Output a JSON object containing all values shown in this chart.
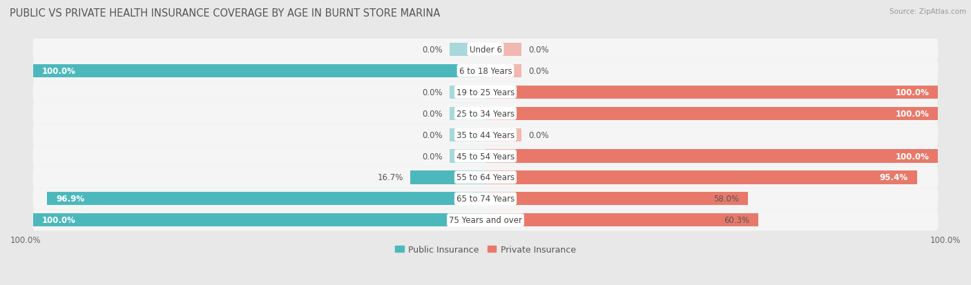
{
  "title": "PUBLIC VS PRIVATE HEALTH INSURANCE COVERAGE BY AGE IN BURNT STORE MARINA",
  "source": "Source: ZipAtlas.com",
  "categories": [
    "Under 6",
    "6 to 18 Years",
    "19 to 25 Years",
    "25 to 34 Years",
    "35 to 44 Years",
    "45 to 54 Years",
    "55 to 64 Years",
    "65 to 74 Years",
    "75 Years and over"
  ],
  "public_values": [
    0.0,
    100.0,
    0.0,
    0.0,
    0.0,
    0.0,
    16.7,
    96.9,
    100.0
  ],
  "private_values": [
    0.0,
    0.0,
    100.0,
    100.0,
    0.0,
    100.0,
    95.4,
    58.0,
    60.3
  ],
  "public_color": "#4db8bc",
  "public_stub_color": "#a8d8db",
  "private_color": "#e8796a",
  "private_stub_color": "#f0b8b0",
  "public_label": "Public Insurance",
  "private_label": "Private Insurance",
  "bg_color": "#e8e8e8",
  "row_bg_color": "#f5f5f5",
  "bar_height": 0.62,
  "stub_size": 8.0,
  "title_fontsize": 10.5,
  "label_fontsize": 8.5,
  "cat_fontsize": 8.5,
  "legend_fontsize": 9,
  "axis_label_fontsize": 8.5
}
